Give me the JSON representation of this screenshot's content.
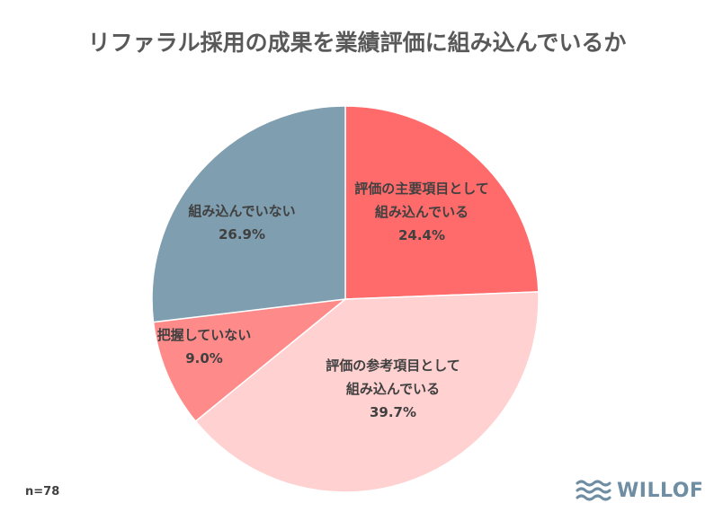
{
  "chart_data": {
    "type": "pie",
    "title": "リファラル採用の成果を業績評価に組み込んでいるか",
    "slices": [
      {
        "label": [
          "評価の主要項目として",
          "組み込んでいる"
        ],
        "value": 24.4,
        "value_label": "24.4%",
        "color": "#ff6b6b"
      },
      {
        "label": [
          "評価の参考項目として",
          "組み込んでいる"
        ],
        "value": 39.7,
        "value_label": "39.7%",
        "color": "#ffd1d1"
      },
      {
        "label": [
          "把握していない"
        ],
        "value": 9.0,
        "value_label": "9.0%",
        "color": "#ff8a8a"
      },
      {
        "label": [
          "組み込んでいない"
        ],
        "value": 26.9,
        "value_label": "26.9%",
        "color": "#7f9eaf"
      }
    ],
    "sample_size": "n=78"
  },
  "brand": {
    "name": "WILLOF",
    "icon": "waves-icon",
    "color": "#6f8ea3"
  }
}
